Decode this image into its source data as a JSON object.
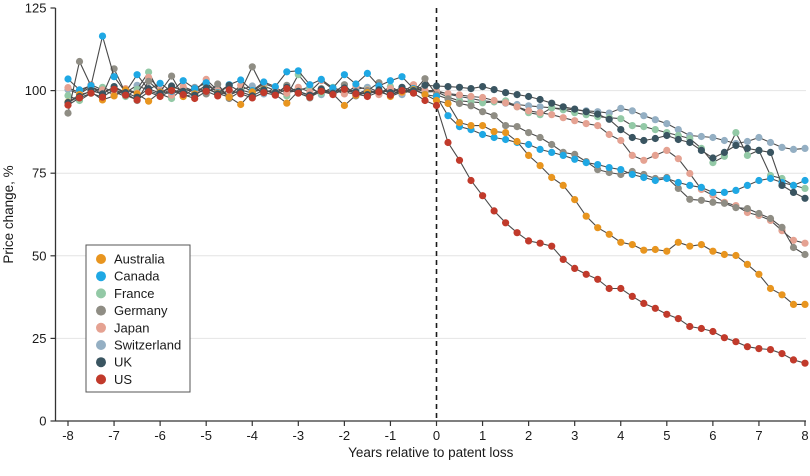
{
  "figure": {
    "x_axis_title": "Years relative to patent loss",
    "y_axis_title": "Price change, %"
  },
  "colors": {
    "background": "#ffffff",
    "grid": "#e4e4e4",
    "axis": "#333333",
    "text": "#1a1a1a",
    "connector_line": "#4a4a4a",
    "reference_line": "#1a1a1a",
    "legend_border": "#555555"
  },
  "chart_data": {
    "type": "line",
    "title": "",
    "xlabel": "Years relative to patent loss",
    "ylabel": "Price change, %",
    "xlim": [
      -8,
      8
    ],
    "ylim": [
      0,
      125
    ],
    "x_ticks": [
      -8,
      -7,
      -6,
      -5,
      -4,
      -3,
      -2,
      -1,
      0,
      1,
      2,
      3,
      4,
      5,
      6,
      7,
      8
    ],
    "y_ticks": [
      0,
      25,
      50,
      75,
      100,
      125
    ],
    "grid": "horizontal",
    "gridline_values": [
      25,
      50,
      75,
      100
    ],
    "reference_line_x": 0,
    "legend_position": "inside-left",
    "x_start": -8,
    "x_step": 0.25,
    "series": [
      {
        "name": "Australia",
        "color": "#E8951F",
        "values": [
          96.5,
          98.8,
          99.6,
          97.2,
          98.4,
          100.2,
          99.0,
          96.8,
          99.5,
          100.8,
          98.2,
          99.0,
          100.5,
          99.2,
          98.0,
          95.8,
          99.6,
          100.4,
          98.8,
          96.2,
          99.8,
          98.4,
          100.2,
          99.0,
          95.5,
          98.6,
          99.4,
          100.1,
          98.2,
          99.6,
          100.3,
          98.8,
          97.0,
          96.1,
          90.3,
          89.4,
          89.4,
          87.6,
          87.3,
          84.6,
          80.4,
          77.3,
          73.7,
          71.3,
          67.0,
          62.0,
          58.5,
          56.5,
          54.1,
          53.4,
          51.7,
          51.9,
          51.4,
          54.1,
          52.9,
          53.4,
          51.4,
          50.4,
          50.1,
          47.4,
          44.4,
          40.1,
          38.2,
          35.3,
          35.3
        ]
      },
      {
        "name": "Canada",
        "color": "#1FA8E4",
        "values": [
          103.5,
          100.2,
          101.5,
          116.5,
          104.2,
          99.5,
          104.8,
          100.3,
          102.2,
          99.8,
          103.0,
          100.6,
          102.4,
          99.4,
          101.8,
          103.2,
          100.0,
          102.6,
          101.2,
          105.7,
          106.0,
          101.8,
          103.4,
          100.8,
          104.8,
          102.0,
          105.2,
          101.4,
          103.0,
          104.2,
          100.6,
          98.8,
          98.2,
          92.4,
          89.1,
          88.2,
          86.7,
          85.8,
          85.2,
          84.3,
          83.7,
          82.2,
          81.3,
          80.4,
          79.2,
          78.2,
          77.6,
          76.7,
          76.1,
          74.6,
          73.7,
          72.8,
          73.4,
          72.2,
          71.3,
          70.7,
          69.2,
          69.2,
          69.8,
          71.3,
          72.8,
          73.4,
          72.2,
          71.3,
          72.8
        ]
      },
      {
        "name": "France",
        "color": "#93C9A6",
        "values": [
          98.5,
          97.0,
          99.2,
          101.0,
          99.6,
          98.2,
          100.4,
          105.6,
          99.0,
          97.6,
          100.8,
          99.4,
          101.6,
          99.8,
          98.6,
          100.2,
          99.2,
          101.4,
          100.0,
          98.4,
          104.8,
          100.6,
          99.2,
          101.0,
          99.6,
          98.8,
          100.4,
          99.0,
          101.2,
          99.4,
          100.8,
          99.6,
          99.7,
          98.0,
          96.9,
          96.6,
          96.3,
          96.6,
          96.9,
          95.1,
          93.3,
          92.7,
          94.8,
          94.2,
          93.3,
          92.7,
          92.1,
          91.8,
          91.5,
          89.4,
          89.1,
          88.2,
          87.3,
          86.4,
          85.5,
          82.5,
          78.2,
          80.1,
          87.3,
          80.4,
          81.9,
          74.3,
          73.4,
          71.3,
          70.4
        ]
      },
      {
        "name": "Germany",
        "color": "#8F8D84",
        "values": [
          93.2,
          108.8,
          101.4,
          98.6,
          106.6,
          99.2,
          97.0,
          102.8,
          99.6,
          104.4,
          98.2,
          100.8,
          99.0,
          102.0,
          97.6,
          99.8,
          107.2,
          100.4,
          98.8,
          101.6,
          99.4,
          97.8,
          100.6,
          99.2,
          101.8,
          98.4,
          100.0,
          102.4,
          98.8,
          100.2,
          99.6,
          103.6,
          98.7,
          97.5,
          96.1,
          95.4,
          93.6,
          92.4,
          89.4,
          89.1,
          87.3,
          85.8,
          83.7,
          81.3,
          80.7,
          78.5,
          76.1,
          75.2,
          74.6,
          75.5,
          74.6,
          73.4,
          73.7,
          70.4,
          67.1,
          66.8,
          66.2,
          65.9,
          64.6,
          64.3,
          62.8,
          61.3,
          58.6,
          52.5,
          50.4
        ]
      },
      {
        "name": "Japan",
        "color": "#E5A292",
        "values": [
          100.9,
          99.4,
          101.8,
          100.2,
          98.8,
          100.6,
          99.2,
          104.0,
          100.4,
          98.6,
          101.2,
          99.8,
          103.4,
          100.0,
          98.4,
          101.6,
          99.6,
          102.2,
          100.8,
          99.2,
          101.0,
          99.6,
          103.0,
          100.4,
          99.0,
          101.4,
          100.2,
          98.8,
          100.6,
          99.4,
          101.8,
          100.0,
          99.7,
          99.1,
          98.7,
          98.2,
          97.9,
          97.0,
          96.3,
          95.1,
          93.9,
          93.3,
          92.7,
          91.8,
          90.9,
          90.0,
          89.4,
          86.7,
          84.9,
          80.4,
          78.9,
          80.4,
          81.9,
          79.4,
          74.9,
          70.1,
          68.3,
          66.2,
          65.2,
          63.1,
          62.2,
          60.7,
          57.6,
          54.7,
          53.8
        ]
      },
      {
        "name": "Switzerland",
        "color": "#94AFC3",
        "values": [
          100.3,
          99.0,
          101.2,
          99.6,
          100.8,
          99.4,
          101.6,
          100.0,
          98.8,
          100.4,
          99.2,
          101.0,
          99.8,
          100.6,
          98.6,
          100.2,
          101.4,
          99.0,
          100.8,
          99.4,
          100.0,
          101.2,
          98.8,
          100.6,
          99.2,
          100.4,
          101.0,
          99.6,
          100.2,
          98.8,
          100.8,
          100.0,
          100.0,
          98.9,
          98.2,
          97.6,
          96.9,
          96.6,
          96.2,
          95.8,
          95.4,
          95.1,
          94.8,
          94.5,
          94.2,
          93.9,
          93.6,
          93.2,
          94.6,
          93.9,
          92.4,
          91.2,
          90.0,
          88.2,
          86.4,
          86.1,
          85.8,
          84.9,
          84.0,
          84.6,
          85.8,
          84.3,
          82.8,
          82.2,
          82.5
        ]
      },
      {
        "name": "UK",
        "color": "#3A5561",
        "values": [
          96.4,
          98.2,
          100.0,
          99.0,
          101.2,
          99.4,
          98.0,
          100.6,
          99.2,
          101.4,
          99.8,
          98.6,
          100.8,
          99.0,
          101.6,
          99.6,
          98.4,
          100.2,
          99.4,
          101.0,
          99.8,
          98.6,
          100.4,
          99.2,
          100.8,
          99.6,
          98.8,
          100.2,
          99.4,
          101.0,
          100.0,
          101.6,
          101.4,
          101.2,
          101.0,
          100.6,
          101.2,
          100.3,
          99.4,
          98.8,
          98.2,
          97.3,
          96.2,
          95.1,
          94.4,
          93.6,
          92.9,
          91.3,
          88.2,
          85.8,
          84.9,
          85.5,
          86.4,
          85.2,
          84.3,
          81.9,
          79.6,
          81.3,
          83.4,
          82.5,
          81.9,
          81.3,
          71.3,
          69.2,
          67.4
        ]
      },
      {
        "name": "US",
        "color": "#C13A2B",
        "values": [
          95.6,
          97.8,
          99.2,
          98.0,
          100.4,
          98.6,
          97.2,
          99.6,
          98.2,
          100.0,
          98.8,
          97.6,
          99.8,
          98.4,
          100.2,
          99.0,
          97.8,
          99.4,
          98.6,
          100.6,
          99.2,
          98.0,
          99.8,
          98.8,
          100.4,
          99.0,
          98.2,
          99.6,
          98.6,
          100.0,
          99.2,
          97.0,
          95.5,
          84.3,
          78.9,
          72.8,
          68.2,
          63.6,
          60.0,
          57.0,
          54.5,
          53.8,
          52.9,
          48.9,
          46.2,
          44.4,
          42.9,
          40.1,
          40.1,
          37.7,
          35.6,
          34.1,
          32.3,
          31.0,
          28.6,
          28.0,
          27.1,
          25.2,
          24.0,
          22.5,
          21.9,
          21.6,
          20.4,
          18.5,
          17.5
        ]
      }
    ]
  }
}
